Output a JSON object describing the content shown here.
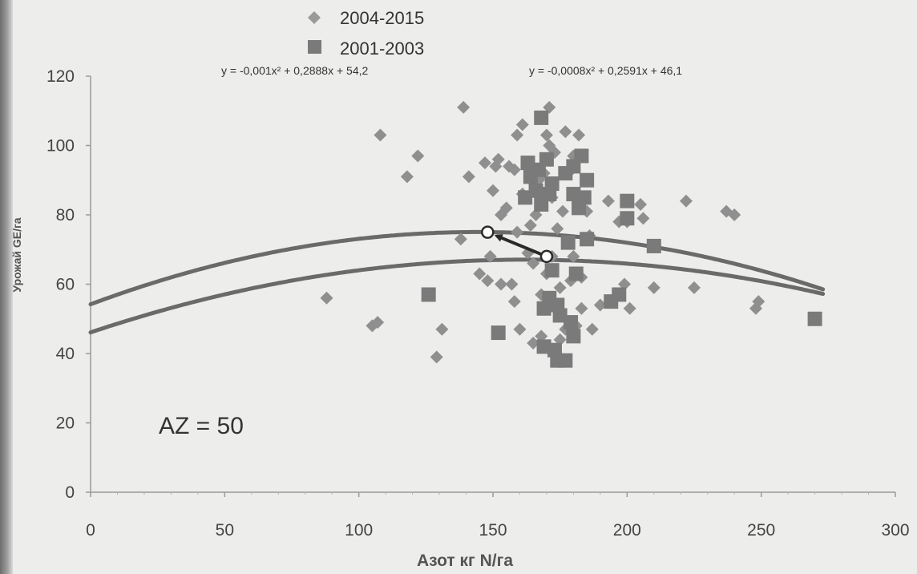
{
  "chart_data": {
    "type": "scatter",
    "xlabel": "Азот кг N/га",
    "ylabel": "Урожай GE/га",
    "xlim": [
      0,
      300
    ],
    "ylim": [
      0,
      120
    ],
    "x_ticks": [
      "0",
      "50",
      "100",
      "150",
      "200",
      "250",
      "300"
    ],
    "y_ticks": [
      "0",
      "20",
      "40",
      "60",
      "80",
      "100",
      "120"
    ],
    "grid": false,
    "legend_position": "top-left",
    "annotation": "AZ = 50",
    "series": [
      {
        "name": "2004-2015",
        "marker": "diamond",
        "color": "#8f8f8f",
        "points": [
          [
            88,
            56
          ],
          [
            105,
            48
          ],
          [
            107,
            49
          ],
          [
            108,
            103
          ],
          [
            118,
            91
          ],
          [
            122,
            97
          ],
          [
            129,
            39
          ],
          [
            131,
            47
          ],
          [
            138,
            73
          ],
          [
            139,
            111
          ],
          [
            141,
            91
          ],
          [
            145,
            63
          ],
          [
            147,
            95
          ],
          [
            148,
            61
          ],
          [
            149,
            68
          ],
          [
            150,
            87
          ],
          [
            151,
            94
          ],
          [
            152,
            96
          ],
          [
            153,
            80
          ],
          [
            153,
            60
          ],
          [
            155,
            82
          ],
          [
            156,
            94
          ],
          [
            157,
            60
          ],
          [
            158,
            93
          ],
          [
            158,
            55
          ],
          [
            159,
            75
          ],
          [
            159,
            103
          ],
          [
            160,
            47
          ],
          [
            161,
            106
          ],
          [
            161,
            86
          ],
          [
            163,
            95
          ],
          [
            163,
            69
          ],
          [
            164,
            77
          ],
          [
            165,
            66
          ],
          [
            165,
            43
          ],
          [
            166,
            80
          ],
          [
            167,
            90
          ],
          [
            168,
            57
          ],
          [
            168,
            45
          ],
          [
            169,
            92
          ],
          [
            170,
            103
          ],
          [
            170,
            63
          ],
          [
            171,
            111
          ],
          [
            171,
            100
          ],
          [
            172,
            85
          ],
          [
            172,
            68
          ],
          [
            173,
            98
          ],
          [
            174,
            76
          ],
          [
            175,
            59
          ],
          [
            175,
            44
          ],
          [
            176,
            81
          ],
          [
            177,
            104
          ],
          [
            177,
            47
          ],
          [
            178,
            92
          ],
          [
            179,
            61
          ],
          [
            180,
            97
          ],
          [
            180,
            68
          ],
          [
            181,
            86
          ],
          [
            181,
            48
          ],
          [
            182,
            103
          ],
          [
            183,
            62
          ],
          [
            183,
            53
          ],
          [
            185,
            81
          ],
          [
            186,
            74
          ],
          [
            187,
            47
          ],
          [
            190,
            54
          ],
          [
            193,
            84
          ],
          [
            197,
            78
          ],
          [
            199,
            60
          ],
          [
            200,
            78
          ],
          [
            201,
            53
          ],
          [
            205,
            83
          ],
          [
            206,
            79
          ],
          [
            210,
            59
          ],
          [
            222,
            84
          ],
          [
            225,
            59
          ],
          [
            237,
            81
          ],
          [
            240,
            80
          ],
          [
            248,
            53
          ],
          [
            249,
            55
          ]
        ]
      },
      {
        "name": "2001-2003",
        "marker": "square",
        "color": "#7a7a7a",
        "points": [
          [
            126,
            57
          ],
          [
            152,
            46
          ],
          [
            162,
            85
          ],
          [
            163,
            95
          ],
          [
            164,
            91
          ],
          [
            166,
            87
          ],
          [
            167,
            93
          ],
          [
            168,
            83
          ],
          [
            168,
            108
          ],
          [
            169,
            53
          ],
          [
            169,
            42
          ],
          [
            170,
            96
          ],
          [
            171,
            86
          ],
          [
            171,
            56
          ],
          [
            172,
            64
          ],
          [
            172,
            89
          ],
          [
            173,
            41
          ],
          [
            174,
            54
          ],
          [
            174,
            38
          ],
          [
            175,
            51
          ],
          [
            177,
            38
          ],
          [
            177,
            92
          ],
          [
            178,
            72
          ],
          [
            179,
            49
          ],
          [
            180,
            86
          ],
          [
            180,
            45
          ],
          [
            180,
            94
          ],
          [
            181,
            63
          ],
          [
            182,
            82
          ],
          [
            183,
            97
          ],
          [
            184,
            85
          ],
          [
            185,
            90
          ],
          [
            185,
            73
          ],
          [
            194,
            55
          ],
          [
            197,
            57
          ],
          [
            200,
            84
          ],
          [
            200,
            79
          ],
          [
            210,
            71
          ],
          [
            270,
            50
          ]
        ]
      }
    ],
    "trendlines": [
      {
        "series": "2004-2015",
        "equation": "y = -0,001x² + 0,2888x + 54,2",
        "a": -0.001,
        "b": 0.2888,
        "c": 54.2,
        "x_range": [
          0,
          273
        ],
        "color": "#6a6a6a"
      },
      {
        "series": "2001-2003",
        "equation": "y = -0,0008x² + 0,2591x + 46,1",
        "a": -0.0008,
        "b": 0.2591,
        "c": 46.1,
        "x_range": [
          0,
          273
        ],
        "color": "#6a6a6a"
      }
    ],
    "optimum_points": [
      {
        "series": "2004-2015",
        "x": 148,
        "y": 75
      },
      {
        "series": "2001-2003",
        "x": 170,
        "y": 68
      }
    ],
    "arrow": {
      "from_series": "2001-2003",
      "to_series": "2004-2015"
    }
  }
}
